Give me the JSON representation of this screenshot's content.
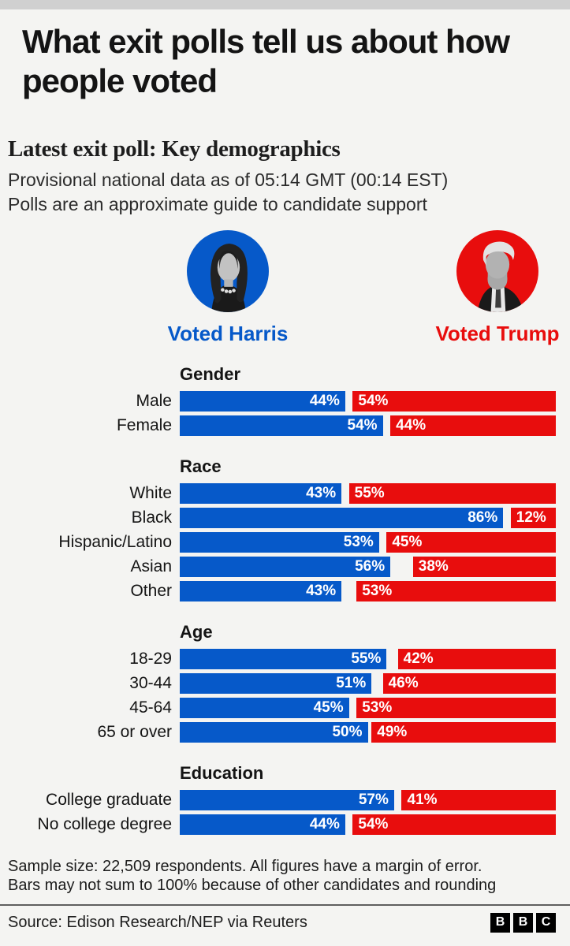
{
  "title": "What exit polls tell us about how people voted",
  "subtitle": {
    "heading": "Latest exit poll: Key demographics",
    "line1": "Provisional national data as of 05:14 GMT (00:14 EST)",
    "line2": "Polls are an approximate guide to candidate support"
  },
  "legend": {
    "harris_label": "Voted Harris",
    "trump_label": "Voted Trump",
    "harris_color": "#0659c9",
    "trump_color": "#e80d0d"
  },
  "chart_data": {
    "type": "bar",
    "units": "%",
    "xlim": [
      0,
      100
    ],
    "series": [
      {
        "name": "Voted Harris",
        "color": "#0659c9"
      },
      {
        "name": "Voted Trump",
        "color": "#e80d0d"
      }
    ],
    "groups": [
      {
        "label": "Gender",
        "rows": [
          {
            "category": "Male",
            "harris": 44,
            "trump": 54
          },
          {
            "category": "Female",
            "harris": 54,
            "trump": 44
          }
        ]
      },
      {
        "label": "Race",
        "rows": [
          {
            "category": "White",
            "harris": 43,
            "trump": 55
          },
          {
            "category": "Black",
            "harris": 86,
            "trump": 12
          },
          {
            "category": "Hispanic/Latino",
            "harris": 53,
            "trump": 45
          },
          {
            "category": "Asian",
            "harris": 56,
            "trump": 38
          },
          {
            "category": "Other",
            "harris": 43,
            "trump": 53
          }
        ]
      },
      {
        "label": "Age",
        "rows": [
          {
            "category": "18-29",
            "harris": 55,
            "trump": 42
          },
          {
            "category": "30-44",
            "harris": 51,
            "trump": 46
          },
          {
            "category": "45-64",
            "harris": 45,
            "trump": 53
          },
          {
            "category": "65 or over",
            "harris": 50,
            "trump": 49
          }
        ]
      },
      {
        "label": "Education",
        "rows": [
          {
            "category": "College graduate",
            "harris": 57,
            "trump": 41
          },
          {
            "category": "No college degree",
            "harris": 44,
            "trump": 54
          }
        ]
      }
    ]
  },
  "footnote": {
    "line1": "Sample size: 22,509 respondents. All figures have a margin of error.",
    "line2": "Bars may not sum to 100% because of other candidates and rounding"
  },
  "source": "Source: Edison Research/NEP via Reuters",
  "logo": {
    "letters": [
      "B",
      "B",
      "C"
    ]
  }
}
